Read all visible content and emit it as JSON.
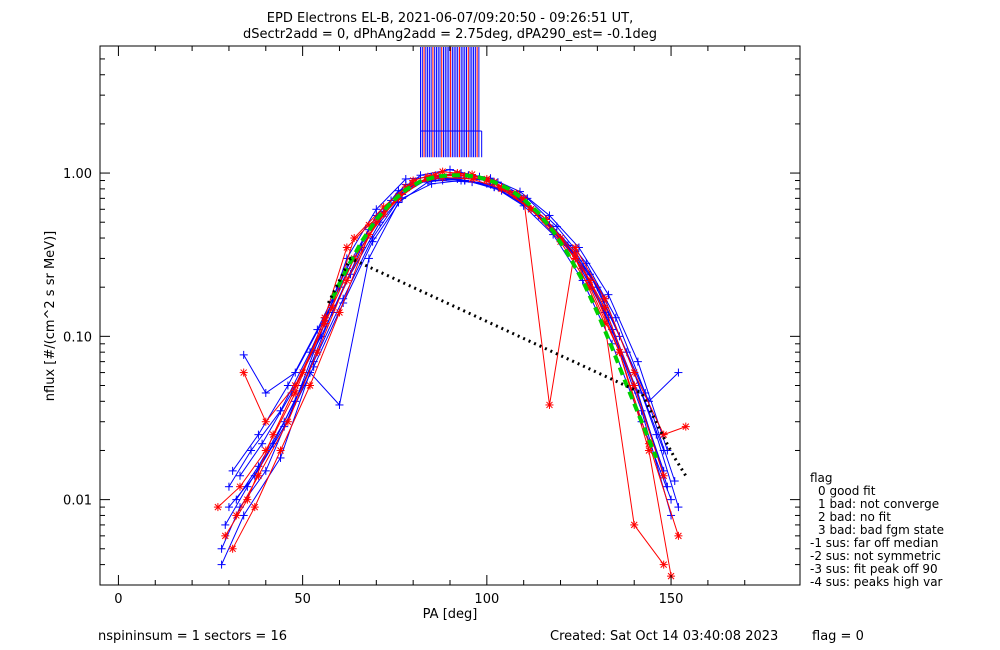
{
  "title_line1": "EPD Electrons EL-B, 2021-06-07/09:20:50 - 09:26:51 UT,",
  "title_line2": "dSectr2add = 0, dPhAng2add = 2.75deg, dPA290_est=  -0.1deg",
  "footer": {
    "left": "nspininsum =  1  sectors = 16",
    "created": "Created: Sat Oct 14 03:40:08 2023",
    "flag": "flag = 0"
  },
  "legend": {
    "title": "flag",
    "items": [
      "0 good fit",
      "1 bad: not converge",
      "2 bad: no fit",
      "3 bad: bad fgm state",
      "-1 sus: far off median",
      "-2 sus: not symmetric",
      "-3 sus: fit peak off 90",
      "-4 sus: peaks high var"
    ]
  },
  "colors": {
    "red": "#ff0000",
    "blue": "#0000ff",
    "green": "#00d000",
    "black": "#000000"
  },
  "chart_data": {
    "type": "line",
    "xlabel": "PA [deg]",
    "ylabel": "nflux [#/(cm^2 s sr MeV)]",
    "xlim": [
      -5,
      185
    ],
    "ylim": [
      0.003,
      6
    ],
    "yscale": "log",
    "xticks": [
      0,
      50,
      100,
      150
    ],
    "xtick_labels": [
      "0",
      "50",
      "100",
      "150"
    ],
    "yticks": [
      0.01,
      0.1,
      1.0
    ],
    "ytick_labels": [
      "0.01",
      "0.10",
      "1.00"
    ],
    "series": [
      {
        "color": "#00d000",
        "style": "dashed",
        "x": [
          58,
          62,
          66,
          70,
          74,
          78,
          82,
          86,
          90,
          94,
          98,
          102,
          106,
          110,
          114,
          118,
          122,
          126,
          130,
          134,
          138,
          142,
          146
        ],
        "y": [
          0.17,
          0.26,
          0.38,
          0.52,
          0.66,
          0.79,
          0.89,
          0.95,
          0.97,
          0.97,
          0.94,
          0.88,
          0.8,
          0.69,
          0.57,
          0.44,
          0.32,
          0.22,
          0.14,
          0.085,
          0.05,
          0.03,
          0.018
        ]
      },
      {
        "color": "#000000",
        "style": "dotted",
        "x": [
          57,
          60,
          63,
          142,
          145,
          148,
          151,
          154
        ],
        "y": [
          0.16,
          0.22,
          0.3,
          0.045,
          0.033,
          0.024,
          0.018,
          0.014
        ]
      },
      {
        "color": "#0000ff",
        "style": "solid",
        "x": [
          28,
          33,
          40,
          48,
          56,
          62,
          70,
          78,
          86,
          94,
          102,
          110,
          118,
          126,
          134,
          142,
          150
        ],
        "y": [
          0.005,
          0.009,
          0.015,
          0.04,
          0.12,
          0.3,
          0.6,
          0.92,
          0.95,
          0.9,
          0.82,
          0.65,
          0.45,
          0.26,
          0.11,
          0.035,
          0.008
        ]
      },
      {
        "color": "#0000ff",
        "style": "solid",
        "x": [
          30,
          36,
          44,
          52,
          60,
          68,
          76,
          84,
          92,
          100,
          108,
          116,
          124,
          132,
          140,
          148
        ],
        "y": [
          0.012,
          0.02,
          0.035,
          0.08,
          0.2,
          0.45,
          0.78,
          0.9,
          0.92,
          0.86,
          0.72,
          0.5,
          0.3,
          0.14,
          0.05,
          0.015
        ]
      },
      {
        "color": "#0000ff",
        "style": "solid",
        "x": [
          29,
          35,
          42,
          50,
          58,
          66,
          74,
          82,
          90,
          98,
          106,
          114,
          122,
          130,
          138,
          146,
          152
        ],
        "y": [
          0.007,
          0.012,
          0.022,
          0.05,
          0.14,
          0.35,
          0.68,
          0.97,
          1.05,
          0.95,
          0.78,
          0.55,
          0.36,
          0.2,
          0.08,
          0.025,
          0.009
        ]
      },
      {
        "color": "#0000ff",
        "style": "solid",
        "x": [
          31,
          38,
          46,
          54,
          62,
          70,
          78,
          86,
          94,
          102,
          110,
          118,
          126,
          134,
          142,
          150
        ],
        "y": [
          0.015,
          0.025,
          0.05,
          0.11,
          0.26,
          0.55,
          0.85,
          0.93,
          0.9,
          0.82,
          0.63,
          0.42,
          0.22,
          0.09,
          0.03,
          0.01
        ]
      },
      {
        "color": "#0000ff",
        "style": "solid",
        "x": [
          34,
          40,
          48,
          56,
          64,
          72,
          80,
          88,
          96,
          104,
          112,
          120,
          128,
          136,
          144,
          152
        ],
        "y": [
          0.077,
          0.045,
          0.06,
          0.13,
          0.3,
          0.58,
          0.88,
          0.9,
          0.88,
          0.78,
          0.6,
          0.4,
          0.24,
          0.1,
          0.04,
          0.06
        ]
      },
      {
        "color": "#0000ff",
        "style": "solid",
        "x": [
          28,
          34,
          44,
          52,
          60,
          68,
          76,
          84,
          92,
          100,
          108,
          116,
          124,
          132,
          140,
          148
        ],
        "y": [
          0.004,
          0.008,
          0.018,
          0.06,
          0.038,
          0.3,
          0.66,
          0.88,
          0.94,
          0.9,
          0.74,
          0.52,
          0.33,
          0.17,
          0.06,
          0.02
        ]
      },
      {
        "color": "#0000ff",
        "style": "solid",
        "x": [
          32,
          38,
          45,
          53,
          61,
          69,
          77,
          85,
          93,
          101,
          109,
          117,
          125,
          133,
          141,
          149
        ],
        "y": [
          0.01,
          0.016,
          0.03,
          0.07,
          0.17,
          0.4,
          0.74,
          0.95,
          1.0,
          0.93,
          0.77,
          0.55,
          0.35,
          0.18,
          0.07,
          0.02
        ]
      },
      {
        "color": "#0000ff",
        "style": "solid",
        "x": [
          30,
          37,
          45,
          53,
          61,
          69,
          77,
          85,
          93,
          101,
          109,
          117,
          125,
          133,
          141,
          149
        ],
        "y": [
          0.009,
          0.014,
          0.028,
          0.065,
          0.16,
          0.38,
          0.7,
          0.86,
          0.9,
          0.85,
          0.7,
          0.48,
          0.29,
          0.13,
          0.045,
          0.012
        ]
      },
      {
        "color": "#0000ff",
        "style": "solid",
        "x": [
          33,
          39,
          47,
          55,
          63,
          71,
          79,
          87,
          95,
          103,
          111,
          119,
          127,
          135,
          143,
          151
        ],
        "y": [
          0.014,
          0.022,
          0.045,
          0.1,
          0.24,
          0.5,
          0.82,
          0.96,
          0.97,
          0.88,
          0.7,
          0.47,
          0.28,
          0.13,
          0.045,
          0.013
        ]
      },
      {
        "color": "#ff0000",
        "style": "solid",
        "x": [
          27,
          33,
          40,
          48,
          56,
          62,
          68,
          76,
          84,
          92,
          100,
          108,
          116,
          124,
          132,
          140,
          148
        ],
        "y": [
          0.009,
          0.012,
          0.02,
          0.045,
          0.13,
          0.35,
          0.48,
          0.7,
          0.95,
          1.0,
          0.92,
          0.75,
          0.52,
          0.32,
          0.15,
          0.05,
          0.014
        ]
      },
      {
        "color": "#ff0000",
        "style": "solid",
        "x": [
          29,
          35,
          42,
          50,
          58,
          64,
          72,
          80,
          88,
          96,
          104,
          112,
          120,
          128,
          136,
          144,
          152
        ],
        "y": [
          0.006,
          0.01,
          0.025,
          0.06,
          0.15,
          0.4,
          0.62,
          0.9,
          1.02,
          0.98,
          0.82,
          0.6,
          0.4,
          0.22,
          0.08,
          0.022,
          0.006
        ]
      },
      {
        "color": "#ff0000",
        "style": "solid",
        "x": [
          32,
          38,
          46,
          54,
          62,
          70,
          78,
          86,
          94,
          102,
          110,
          117,
          124,
          132,
          140,
          148,
          154
        ],
        "y": [
          0.008,
          0.014,
          0.03,
          0.08,
          0.22,
          0.5,
          0.82,
          0.97,
          0.96,
          0.88,
          0.7,
          0.038,
          0.35,
          0.17,
          0.06,
          0.025,
          0.028
        ]
      },
      {
        "color": "#ff0000",
        "style": "solid",
        "x": [
          34,
          40,
          48,
          56,
          64,
          72,
          80,
          88,
          96,
          104,
          112,
          120,
          128,
          136,
          144,
          150
        ],
        "y": [
          0.06,
          0.03,
          0.05,
          0.12,
          0.3,
          0.56,
          0.86,
          0.94,
          0.92,
          0.8,
          0.6,
          0.38,
          0.2,
          0.08,
          0.02,
          0.0034
        ]
      },
      {
        "color": "#ff0000",
        "style": "solid",
        "x": [
          31,
          37,
          44,
          52,
          60,
          68,
          76,
          84,
          92,
          100,
          108,
          116,
          124,
          132,
          140,
          148
        ],
        "y": [
          0.005,
          0.009,
          0.02,
          0.05,
          0.14,
          0.42,
          0.72,
          0.93,
          0.98,
          0.9,
          0.73,
          0.52,
          0.3,
          0.12,
          0.007,
          0.004
        ]
      }
    ]
  }
}
